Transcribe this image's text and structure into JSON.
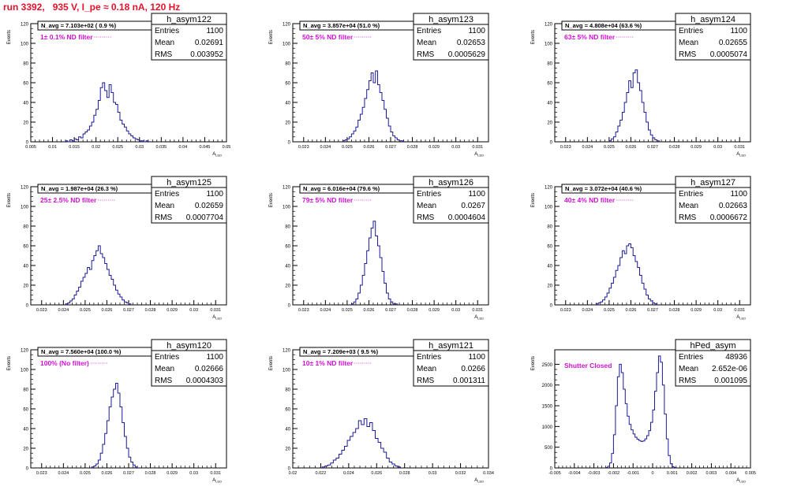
{
  "page": {
    "title": "run 3392,   935 V, I_pe ≈ 0.18 nA, 120 Hz"
  },
  "colors": {
    "histogram": "#1a1a9a",
    "annotation": "#d010d0",
    "title": "#e8102a",
    "axis": "#000000"
  },
  "chart_data": [
    {
      "type": "histogram",
      "name": "h_asym122",
      "stats": {
        "entries": "1100",
        "mean": "0.02691",
        "rms": "0.003952"
      },
      "stat_labels": {
        "entries": "Entries",
        "mean": "Mean",
        "rms": "RMS"
      },
      "navg_text": "N_avg = 7.103e+02 ( 0.9 %)",
      "filter_text": "1± 0.1% ND filter",
      "ylabel": "Events",
      "xlabel": "A",
      "xlabel_sub": "LED",
      "xlim": [
        0.005,
        0.05
      ],
      "ylim": [
        0,
        120
      ],
      "yticks": [
        0,
        20,
        40,
        60,
        80,
        100,
        120
      ],
      "xticks": [
        0.005,
        0.01,
        0.015,
        0.02,
        0.025,
        0.03,
        0.035,
        0.04,
        0.045,
        0.05
      ],
      "xtick_labels": [
        "0.005",
        "0.01",
        "0.015",
        "0.02",
        "0.025",
        "0.03",
        "0.035",
        "0.04",
        "0.045",
        "0.05"
      ],
      "bins": {
        "start": 0.013,
        "width": 0.0005,
        "values": [
          1,
          0,
          2,
          1,
          3,
          2,
          5,
          4,
          8,
          10,
          12,
          16,
          20,
          27,
          33,
          42,
          55,
          60,
          52,
          45,
          58,
          50,
          40,
          38,
          30,
          22,
          18,
          15,
          11,
          8,
          6,
          4,
          3,
          2,
          1,
          1,
          0,
          1
        ]
      }
    },
    {
      "type": "histogram",
      "name": "h_asym123",
      "stats": {
        "entries": "1100",
        "mean": "0.02653",
        "rms": "0.0005629"
      },
      "stat_labels": {
        "entries": "Entries",
        "mean": "Mean",
        "rms": "RMS"
      },
      "navg_text": "N_avg = 3.857e+04 (51.0 %)",
      "filter_text": "50± 5% ND filter",
      "ylabel": "Events",
      "xlabel": "A",
      "xlabel_sub": "LED",
      "xlim": [
        0.0225,
        0.0315
      ],
      "ylim": [
        0,
        120
      ],
      "yticks": [
        0,
        20,
        40,
        60,
        80,
        100,
        120
      ],
      "xticks": [
        0.023,
        0.024,
        0.025,
        0.026,
        0.027,
        0.028,
        0.029,
        0.03,
        0.031
      ],
      "xtick_labels": [
        "0.023",
        "0.024",
        "0.025",
        "0.026",
        "0.027",
        "0.028",
        "0.029",
        "0.03",
        "0.031"
      ],
      "bins": {
        "start": 0.0248,
        "width": 0.0001,
        "values": [
          1,
          2,
          3,
          5,
          8,
          11,
          15,
          22,
          28,
          35,
          44,
          53,
          62,
          70,
          60,
          72,
          58,
          50,
          42,
          33,
          24,
          16,
          10,
          6,
          4,
          2,
          1,
          1
        ]
      }
    },
    {
      "type": "histogram",
      "name": "h_asym124",
      "stats": {
        "entries": "1100",
        "mean": "0.02655",
        "rms": "0.0005074"
      },
      "stat_labels": {
        "entries": "Entries",
        "mean": "Mean",
        "rms": "RMS"
      },
      "navg_text": "N_avg = 4.808e+04 (63.6 %)",
      "filter_text": "63± 5% ND filter",
      "ylabel": "Events",
      "xlabel": "A",
      "xlabel_sub": "LED",
      "xlim": [
        0.0225,
        0.0315
      ],
      "ylim": [
        0,
        120
      ],
      "yticks": [
        0,
        20,
        40,
        60,
        80,
        100,
        120
      ],
      "xticks": [
        0.023,
        0.024,
        0.025,
        0.026,
        0.027,
        0.028,
        0.029,
        0.03,
        0.031
      ],
      "xtick_labels": [
        "0.023",
        "0.024",
        "0.025",
        "0.026",
        "0.027",
        "0.028",
        "0.029",
        "0.03",
        "0.031"
      ],
      "bins": {
        "start": 0.025,
        "width": 0.0001,
        "values": [
          1,
          3,
          5,
          10,
          16,
          22,
          30,
          40,
          50,
          62,
          55,
          70,
          73,
          60,
          52,
          40,
          30,
          20,
          12,
          7,
          4,
          2,
          1
        ]
      }
    },
    {
      "type": "histogram",
      "name": "h_asym125",
      "stats": {
        "entries": "1100",
        "mean": "0.02659",
        "rms": "0.0007704"
      },
      "stat_labels": {
        "entries": "Entries",
        "mean": "Mean",
        "rms": "RMS"
      },
      "navg_text": "N_avg = 1.987e+04 (26.3 %)",
      "filter_text": "25± 2.5% ND filter",
      "ylabel": "Events",
      "xlabel": "A",
      "xlabel_sub": "LED",
      "xlim": [
        0.0225,
        0.0315
      ],
      "ylim": [
        0,
        120
      ],
      "yticks": [
        0,
        20,
        40,
        60,
        80,
        100,
        120
      ],
      "xticks": [
        0.023,
        0.024,
        0.025,
        0.026,
        0.027,
        0.028,
        0.029,
        0.03,
        0.031
      ],
      "xtick_labels": [
        "0.023",
        "0.024",
        "0.025",
        "0.026",
        "0.027",
        "0.028",
        "0.029",
        "0.03",
        "0.031"
      ],
      "bins": {
        "start": 0.0241,
        "width": 0.0001,
        "values": [
          1,
          2,
          4,
          6,
          10,
          14,
          18,
          24,
          28,
          32,
          38,
          36,
          45,
          50,
          55,
          60,
          52,
          48,
          42,
          36,
          30,
          26,
          20,
          15,
          11,
          8,
          5,
          3,
          2,
          1
        ]
      }
    },
    {
      "type": "histogram",
      "name": "h_asym126",
      "stats": {
        "entries": "1100",
        "mean": "0.0267",
        "rms": "0.0004604"
      },
      "stat_labels": {
        "entries": "Entries",
        "mean": "Mean",
        "rms": "RMS"
      },
      "navg_text": "N_avg = 6.016e+04 (79.6 %)",
      "filter_text": "79± 5% ND filter",
      "ylabel": "Events",
      "xlabel": "A",
      "xlabel_sub": "LED",
      "xlim": [
        0.0225,
        0.0315
      ],
      "ylim": [
        0,
        120
      ],
      "yticks": [
        0,
        20,
        40,
        60,
        80,
        100,
        120
      ],
      "xticks": [
        0.023,
        0.024,
        0.025,
        0.026,
        0.027,
        0.028,
        0.029,
        0.03,
        0.031
      ],
      "xtick_labels": [
        "0.023",
        "0.024",
        "0.025",
        "0.026",
        "0.027",
        "0.028",
        "0.029",
        "0.03",
        "0.031"
      ],
      "bins": {
        "start": 0.0252,
        "width": 0.0001,
        "values": [
          1,
          3,
          6,
          12,
          20,
          30,
          42,
          55,
          68,
          78,
          85,
          70,
          60,
          48,
          34,
          22,
          12,
          6,
          3,
          1,
          1
        ]
      }
    },
    {
      "type": "histogram",
      "name": "h_asym127",
      "stats": {
        "entries": "1100",
        "mean": "0.02663",
        "rms": "0.0006672"
      },
      "stat_labels": {
        "entries": "Entries",
        "mean": "Mean",
        "rms": "RMS"
      },
      "navg_text": "N_avg = 3.072e+04 (40.6 %)",
      "filter_text": "40± 4% ND filter",
      "ylabel": "Events",
      "xlabel": "A",
      "xlabel_sub": "LED",
      "xlim": [
        0.0225,
        0.0315
      ],
      "ylim": [
        0,
        120
      ],
      "yticks": [
        0,
        20,
        40,
        60,
        80,
        100,
        120
      ],
      "xticks": [
        0.023,
        0.024,
        0.025,
        0.026,
        0.027,
        0.028,
        0.029,
        0.03,
        0.031
      ],
      "xtick_labels": [
        "0.023",
        "0.024",
        "0.025",
        "0.026",
        "0.027",
        "0.028",
        "0.029",
        "0.03",
        "0.031"
      ],
      "bins": {
        "start": 0.0244,
        "width": 0.0001,
        "values": [
          1,
          2,
          3,
          5,
          8,
          12,
          17,
          22,
          28,
          35,
          40,
          48,
          55,
          52,
          60,
          62,
          58,
          50,
          44,
          38,
          30,
          22,
          16,
          10,
          6,
          4,
          2,
          1
        ]
      }
    },
    {
      "type": "histogram",
      "name": "h_asym120",
      "stats": {
        "entries": "1100",
        "mean": "0.02666",
        "rms": "0.0004303"
      },
      "stat_labels": {
        "entries": "Entries",
        "mean": "Mean",
        "rms": "RMS"
      },
      "navg_text": "N_avg = 7.560e+04 (100.0 %)",
      "filter_text": "100% (No filter)",
      "ylabel": "Events",
      "xlabel": "A",
      "xlabel_sub": "LED",
      "xlim": [
        0.0225,
        0.0315
      ],
      "ylim": [
        0,
        120
      ],
      "yticks": [
        0,
        20,
        40,
        60,
        80,
        100,
        120
      ],
      "xticks": [
        0.023,
        0.024,
        0.025,
        0.026,
        0.027,
        0.028,
        0.029,
        0.03,
        0.031
      ],
      "xtick_labels": [
        "0.023",
        "0.024",
        "0.025",
        "0.026",
        "0.027",
        "0.028",
        "0.029",
        "0.03",
        "0.031"
      ],
      "bins": {
        "start": 0.0253,
        "width": 0.0001,
        "values": [
          1,
          2,
          4,
          8,
          15,
          24,
          35,
          48,
          62,
          72,
          80,
          86,
          76,
          62,
          46,
          32,
          20,
          11,
          6,
          3,
          1
        ]
      }
    },
    {
      "type": "histogram",
      "name": "h_asym121",
      "stats": {
        "entries": "1100",
        "mean": "0.0266",
        "rms": "0.001311"
      },
      "stat_labels": {
        "entries": "Entries",
        "mean": "Mean",
        "rms": "RMS"
      },
      "navg_text": "N_avg = 7.209e+03 ( 9.5 %)",
      "filter_text": "10± 1% ND filter",
      "ylabel": "Events",
      "xlabel": "A",
      "xlabel_sub": "LED",
      "xlim": [
        0.02,
        0.034
      ],
      "ylim": [
        0,
        120
      ],
      "yticks": [
        0,
        20,
        40,
        60,
        80,
        100,
        120
      ],
      "xticks": [
        0.02,
        0.022,
        0.024,
        0.026,
        0.028,
        0.03,
        0.032,
        0.034
      ],
      "xtick_labels": [
        "0.02",
        "0.022",
        "0.024",
        "0.026",
        "0.028",
        "0.03",
        "0.032",
        "0.034"
      ],
      "bins": {
        "start": 0.0221,
        "width": 0.0002,
        "values": [
          1,
          2,
          3,
          5,
          8,
          10,
          14,
          18,
          22,
          28,
          32,
          36,
          40,
          48,
          44,
          50,
          42,
          46,
          38,
          30,
          26,
          20,
          16,
          10,
          6,
          4,
          2,
          1
        ]
      }
    },
    {
      "type": "histogram",
      "name": "hPed_asym",
      "stats": {
        "entries": "48936",
        "mean": "2.652e-06",
        "rms": "0.001095"
      },
      "stat_labels": {
        "entries": "Entries",
        "mean": "Mean",
        "rms": "RMS"
      },
      "filter_text": "Shutter Closed",
      "ylabel": "Events",
      "xlabel": "A",
      "xlabel_sub": "LED",
      "xlim": [
        -0.005,
        0.005
      ],
      "ylim": [
        0,
        2850
      ],
      "yticks": [
        0,
        500,
        1000,
        1500,
        2000,
        2500
      ],
      "xticks": [
        -0.005,
        -0.004,
        -0.003,
        -0.002,
        -0.001,
        0,
        0.001,
        0.002,
        0.003,
        0.004,
        0.005
      ],
      "xtick_labels": [
        "-0.005",
        "-0.004",
        "-0.003",
        "-0.002",
        "-0.001",
        "0",
        "0.001",
        "0.002",
        "0.003",
        "0.004",
        "0.005"
      ],
      "bins": {
        "start": -0.0024,
        "width": 0.0001,
        "values": [
          10,
          40,
          120,
          350,
          800,
          1500,
          2200,
          2500,
          2300,
          1900,
          1550,
          1250,
          1050,
          920,
          820,
          740,
          690,
          660,
          640,
          650,
          700,
          780,
          900,
          1100,
          1400,
          1850,
          2300,
          2700,
          2550,
          2000,
          1300,
          700,
          300,
          100,
          30,
          10
        ]
      }
    }
  ]
}
